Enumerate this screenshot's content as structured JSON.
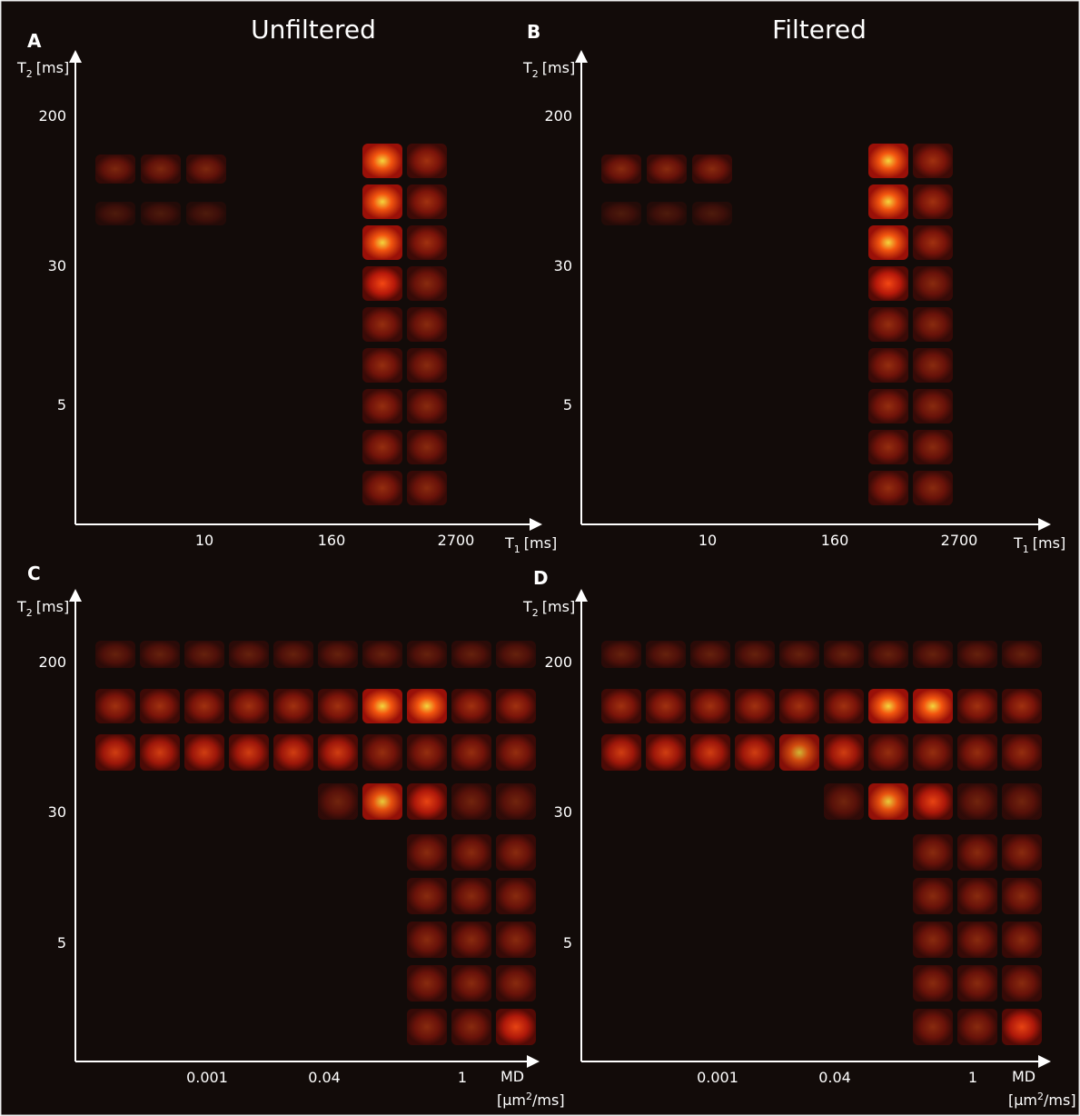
{
  "panels": [
    {
      "letter": "A",
      "title": "Unfiltered",
      "y_axis": {
        "symbol": "T",
        "subscript": "2",
        "unit": "[ms]"
      },
      "y_ticks": [
        "200",
        "30",
        "5"
      ],
      "x_axis": {
        "symbol": "T",
        "subscript": "1",
        "unit": "[ms]"
      },
      "x_ticks": [
        "10",
        "160",
        "2700"
      ]
    },
    {
      "letter": "B",
      "title": "Filtered",
      "y_axis": {
        "symbol": "T",
        "subscript": "2",
        "unit": "[ms]"
      },
      "y_ticks": [
        "200",
        "30",
        "5"
      ],
      "x_axis": {
        "symbol": "T",
        "subscript": "1",
        "unit": "[ms]"
      },
      "x_ticks": [
        "10",
        "160",
        "2700"
      ]
    },
    {
      "letter": "C",
      "y_axis": {
        "symbol": "T",
        "subscript": "2",
        "unit": "[ms]"
      },
      "y_ticks": [
        "200",
        "30",
        "5"
      ],
      "x_axis": {
        "symbol": "MD",
        "unit_prefix": "[µm",
        "superscript": "2",
        "unit_suffix": "/ms]"
      },
      "x_ticks": [
        "0.001",
        "0.04",
        "1"
      ]
    },
    {
      "letter": "D",
      "y_axis": {
        "symbol": "T",
        "subscript": "2",
        "unit": "[ms]"
      },
      "y_ticks": [
        "200",
        "30",
        "5"
      ],
      "x_axis": {
        "symbol": "MD",
        "unit_prefix": "[µm",
        "superscript": "2",
        "unit_suffix": "/ms]"
      },
      "x_ticks": [
        "0.001",
        "0.04",
        "1"
      ]
    }
  ]
}
